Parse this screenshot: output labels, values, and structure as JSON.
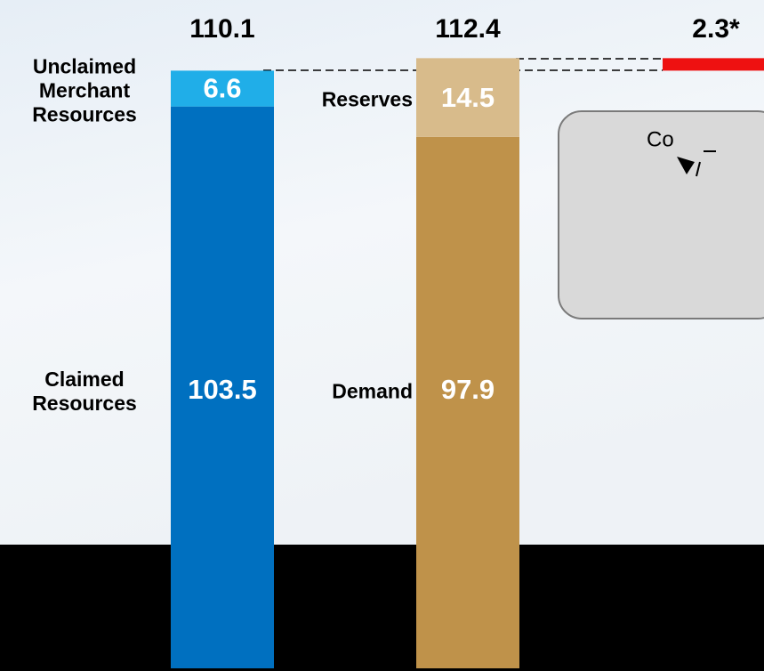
{
  "chart_data": {
    "type": "bar",
    "stacked": true,
    "bars": [
      {
        "total": 110.1,
        "segments": [
          {
            "name": "Claimed Resources",
            "value": 103.5,
            "color": "#0070c0"
          },
          {
            "name": "Unclaimed Merchant Resources",
            "value": 6.6,
            "color": "#20aee8"
          }
        ]
      },
      {
        "total": 112.4,
        "segments": [
          {
            "name": "Demand",
            "value": 97.9,
            "color": "#bf924a"
          },
          {
            "name": "Reserves",
            "value": 14.5,
            "color": "#d8bb8b"
          }
        ]
      }
    ],
    "gap": {
      "value": 2.3,
      "value_label": "2.3*",
      "color": "#ee1111"
    },
    "annotation": "Co"
  }
}
